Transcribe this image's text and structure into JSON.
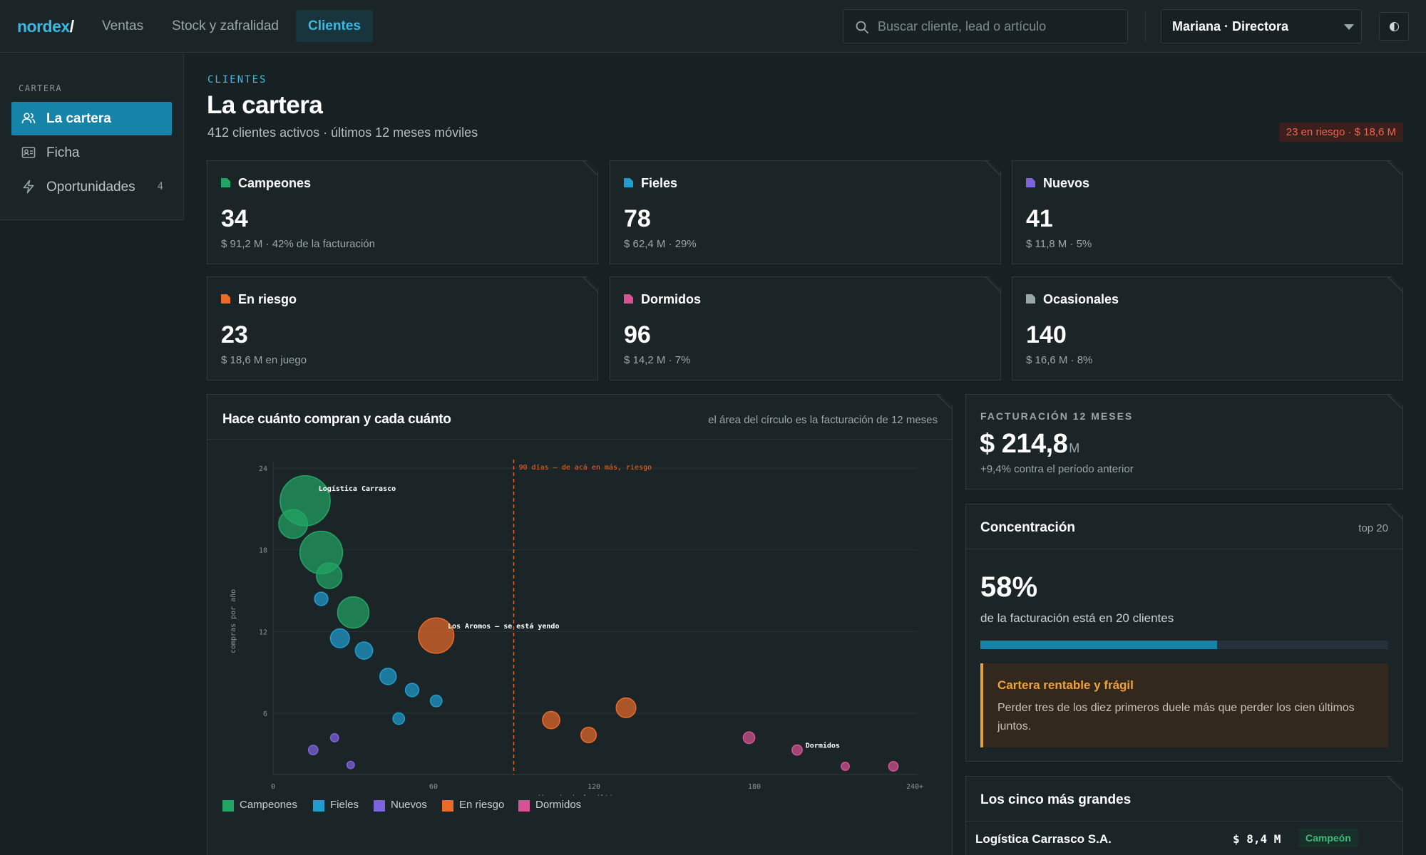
{
  "brand": {
    "name": "nordex",
    "slash": "/"
  },
  "nav": [
    {
      "label": "Ventas"
    },
    {
      "label": "Stock y zafralidad"
    },
    {
      "label": "Clientes",
      "active": true
    }
  ],
  "search": {
    "placeholder": "Buscar cliente, lead o artículo",
    "icon": "search-icon"
  },
  "user": {
    "label": "Mariana · Directora"
  },
  "sidebar": {
    "section": "CARTERA",
    "items": [
      {
        "label": "La cartera",
        "icon": "users-icon",
        "active": true
      },
      {
        "label": "Ficha",
        "icon": "id-card-icon"
      },
      {
        "label": "Oportunidades",
        "icon": "lightning-icon",
        "count": "4"
      }
    ]
  },
  "header": {
    "eyebrow": "CLIENTES",
    "title": "La cartera",
    "subtitle": "412 clientes activos · últimos 12 meses móviles",
    "risk_badge": "23 en riesgo · $ 18,6 M"
  },
  "segments": [
    {
      "name": "Campeones",
      "count": "34",
      "detail": "$ 91,2 M · 42% de la facturación",
      "color": "#21a565"
    },
    {
      "name": "Fieles",
      "count": "78",
      "detail": "$ 62,4 M · 29%",
      "color": "#1e9ed0"
    },
    {
      "name": "Nuevos",
      "count": "41",
      "detail": "$ 11,8 M · 5%",
      "color": "#7e63de"
    },
    {
      "name": "En riesgo",
      "count": "23",
      "detail": "$ 18,6 M en juego",
      "color": "#ea6a2a"
    },
    {
      "name": "Dormidos",
      "count": "96",
      "detail": "$ 14,2 M · 7%",
      "color": "#d75394"
    },
    {
      "name": "Ocasionales",
      "count": "140",
      "detail": "$ 16,6 M · 8%",
      "color": "#9aa7a9"
    }
  ],
  "chart_panel": {
    "title": "Hace cuánto compran y cada cuánto",
    "note": "el área del círculo es la facturación de 12 meses"
  },
  "chart_data": {
    "type": "scatter",
    "xlabel": "días desde la última compra",
    "ylabel": "compras por año",
    "xlim": [
      0,
      240
    ],
    "ylim": [
      1.5,
      24
    ],
    "x_ticks": [
      "0",
      "60",
      "120",
      "180",
      "240+"
    ],
    "x_tick_values": [
      0,
      60,
      120,
      180,
      240
    ],
    "y_ticks": [
      "6",
      "12",
      "18",
      "24"
    ],
    "y_tick_values": [
      6,
      12,
      18,
      24
    ],
    "grid": true,
    "threshold": {
      "x": 90,
      "label": "90 días — de acá en más, riesgo"
    },
    "annotations": [
      {
        "text": "Logística Carrasco"
      },
      {
        "text": "Los Aromos — se está yendo"
      },
      {
        "text": "Dormidos"
      }
    ],
    "series": [
      {
        "name": "Campeones",
        "color": "#21a565",
        "points": [
          {
            "x": 12,
            "y": 21.6,
            "size": 8.4,
            "label_ref": 0
          },
          {
            "x": 7.5,
            "y": 19.9,
            "size": 2.8
          },
          {
            "x": 18,
            "y": 17.8,
            "size": 6.1
          },
          {
            "x": 21,
            "y": 16.1,
            "size": 2.2
          },
          {
            "x": 30,
            "y": 13.4,
            "size": 3.3
          }
        ]
      },
      {
        "name": "Fieles",
        "color": "#1e9ed0",
        "points": [
          {
            "x": 18,
            "y": 14.4,
            "size": 0.6
          },
          {
            "x": 25,
            "y": 11.5,
            "size": 1.2
          },
          {
            "x": 34,
            "y": 10.6,
            "size": 1.0
          },
          {
            "x": 43,
            "y": 8.7,
            "size": 0.9
          },
          {
            "x": 52,
            "y": 7.7,
            "size": 0.6
          },
          {
            "x": 47,
            "y": 5.6,
            "size": 0.45
          },
          {
            "x": 61,
            "y": 6.9,
            "size": 0.45
          }
        ]
      },
      {
        "name": "Nuevos",
        "color": "#7e63de",
        "points": [
          {
            "x": 15,
            "y": 3.3,
            "size": 0.3
          },
          {
            "x": 23,
            "y": 4.2,
            "size": 0.22
          },
          {
            "x": 29,
            "y": 2.2,
            "size": 0.18
          }
        ]
      },
      {
        "name": "En riesgo",
        "color": "#ea6a2a",
        "points": [
          {
            "x": 61,
            "y": 11.7,
            "size": 4.2,
            "label_ref": 1
          },
          {
            "x": 104,
            "y": 5.5,
            "size": 1.0
          },
          {
            "x": 118,
            "y": 4.4,
            "size": 0.8
          },
          {
            "x": 132,
            "y": 6.4,
            "size": 1.3
          }
        ]
      },
      {
        "name": "Dormidos",
        "color": "#d75394",
        "points": [
          {
            "x": 178,
            "y": 4.2,
            "size": 0.45
          },
          {
            "x": 196,
            "y": 3.3,
            "size": 0.35,
            "label_ref": 2
          },
          {
            "x": 214,
            "y": 2.1,
            "size": 0.22
          },
          {
            "x": 232,
            "y": 2.1,
            "size": 0.3
          }
        ]
      }
    ]
  },
  "legend": [
    {
      "label": "Campeones",
      "color": "#21a565"
    },
    {
      "label": "Fieles",
      "color": "#1e9ed0"
    },
    {
      "label": "Nuevos",
      "color": "#7e63de"
    },
    {
      "label": "En riesgo",
      "color": "#ea6a2a"
    },
    {
      "label": "Dormidos",
      "color": "#d75394"
    }
  ],
  "revenue": {
    "eyebrow": "FACTURACIÓN 12 MESES",
    "value": "$ 214,8",
    "unit": "M",
    "delta": "+9,4% contra el período anterior"
  },
  "concentration": {
    "title": "Concentración",
    "tag": "top 20",
    "pct": "58%",
    "desc": "de la facturación está en 20 clientes",
    "share": 0.58,
    "alert_title": "Cartera rentable y frágil",
    "alert_body": "Perder tres de los diez primeros duele más que perder los cien últimos juntos."
  },
  "top5": {
    "title": "Los cinco más grandes",
    "rows": [
      {
        "name": "Logística Carrasco S.A.",
        "amount": "$ 8,4 M",
        "badge": "Campeón"
      }
    ]
  }
}
